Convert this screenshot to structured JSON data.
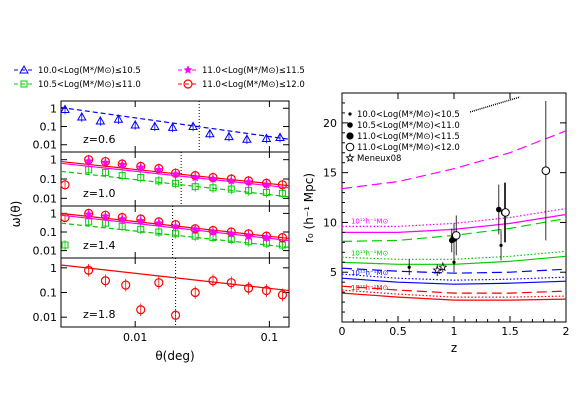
{
  "chart_data": [
    {
      "type": "line",
      "panel": "left",
      "xlabel": "θ(deg)",
      "ylabel": "ω(θ)",
      "xscale": "log",
      "yscale": "log",
      "xlim": [
        0.0028,
        0.14
      ],
      "ylim": [
        0.004,
        2.5
      ],
      "xticks": [
        {
          "v": 0.01,
          "label": "0.01"
        },
        {
          "v": 0.1,
          "label": "0.1"
        }
      ],
      "yticks": [
        {
          "v": 1,
          "label": "1"
        },
        {
          "v": 0.1,
          "label": "0.1"
        },
        {
          "v": 0.01,
          "label": "0.01"
        }
      ],
      "legend": [
        {
          "label": "10.0<Log(M*/M⊙)≤10.5",
          "color": "#0000ff",
          "marker": "triangle"
        },
        {
          "label": "11.0<Log(M*/M⊙)≤11.5",
          "color": "#ff00ff",
          "marker": "star"
        },
        {
          "label": "10.5<Log(M*/M⊙)≤11.0",
          "color": "#00cc00",
          "marker": "square"
        },
        {
          "label": "11.0<Log(M*/M⊙)≤12.0",
          "color": "#ff0000",
          "marker": "circle"
        }
      ],
      "subpanels": [
        {
          "label": "z=0.6",
          "series": [
            {
              "color": "#0000ff",
              "marker": "triangle",
              "x": [
                0.003,
                0.004,
                0.0055,
                0.0075,
                0.01,
                0.014,
                0.019,
                0.027,
                0.036,
                0.05,
                0.068,
                0.095,
                0.12
              ],
              "y": [
                0.85,
                0.33,
                0.2,
                0.25,
                0.12,
                0.1,
                0.09,
                0.1,
                0.04,
                0.028,
                0.02,
                0.022,
                0.025
              ],
              "fit": [
                [
                  0.0028,
                  1.1
                ],
                [
                  0.14,
                  0.02
                ]
              ]
            }
          ],
          "vline": 0.03
        },
        {
          "label": "z=1.0",
          "series": [
            {
              "color": "#00cc00",
              "marker": "square",
              "x": [
                0.0045,
                0.006,
                0.008,
                0.011,
                0.015,
                0.02,
                0.028,
                0.038,
                0.052,
                0.07,
                0.095,
                0.125
              ],
              "y": [
                0.3,
                0.22,
                0.15,
                0.12,
                0.08,
                0.06,
                0.04,
                0.035,
                0.03,
                0.025,
                0.02,
                0.018
              ],
              "fit": [
                [
                  0.0028,
                  0.25
                ],
                [
                  0.14,
                  0.012
                ]
              ]
            },
            {
              "color": "#ff0000",
              "marker": "circle",
              "x": [
                0.003,
                0.0045,
                0.006,
                0.008,
                0.011,
                0.015,
                0.02,
                0.028,
                0.038,
                0.052,
                0.07,
                0.095,
                0.125
              ],
              "y": [
                0.05,
                1.0,
                0.8,
                0.6,
                0.45,
                0.35,
                0.2,
                0.15,
                0.12,
                0.1,
                0.08,
                0.06,
                0.05
              ],
              "fit": [
                [
                  0.0028,
                  0.8
                ],
                [
                  0.14,
                  0.045
                ]
              ]
            },
            {
              "color": "#ff00ff",
              "marker": "star",
              "x": [
                0.0045,
                0.006,
                0.008,
                0.011,
                0.015,
                0.02,
                0.028,
                0.038,
                0.052,
                0.07,
                0.095
              ],
              "y": [
                0.85,
                0.7,
                0.55,
                0.4,
                0.3,
                0.18,
                0.12,
                0.1,
                0.08,
                0.07,
                0.05
              ],
              "fit": [
                [
                  0.0028,
                  0.65
                ],
                [
                  0.14,
                  0.035
                ]
              ]
            }
          ],
          "vline": 0.022
        },
        {
          "label": "z=1.4",
          "series": [
            {
              "color": "#00cc00",
              "marker": "square",
              "x": [
                0.003,
                0.0045,
                0.006,
                0.008,
                0.011,
                0.015,
                0.02,
                0.028,
                0.038,
                0.052,
                0.07,
                0.095,
                0.125
              ],
              "y": [
                0.02,
                0.35,
                0.3,
                0.2,
                0.14,
                0.1,
                0.08,
                0.06,
                0.05,
                0.04,
                0.03,
                0.025,
                0.02
              ],
              "fit": [
                [
                  0.0028,
                  0.3
                ],
                [
                  0.14,
                  0.015
                ]
              ]
            },
            {
              "color": "#ff0000",
              "marker": "circle",
              "x": [
                0.003,
                0.0045,
                0.006,
                0.008,
                0.011,
                0.015,
                0.02,
                0.028,
                0.038,
                0.052,
                0.07,
                0.095,
                0.125
              ],
              "y": [
                0.6,
                1.0,
                0.8,
                0.6,
                0.5,
                0.35,
                0.25,
                0.15,
                0.12,
                0.1,
                0.08,
                0.06,
                0.05
              ],
              "fit": [
                [
                  0.0028,
                  1.0
                ],
                [
                  0.14,
                  0.045
                ]
              ]
            },
            {
              "color": "#ff00ff",
              "marker": "star",
              "x": [
                0.0045,
                0.006,
                0.008,
                0.011,
                0.015,
                0.02,
                0.028,
                0.038,
                0.052,
                0.07,
                0.095
              ],
              "y": [
                0.9,
                0.7,
                0.5,
                0.4,
                0.3,
                0.2,
                0.14,
                0.1,
                0.08,
                0.06,
                0.05
              ],
              "fit": [
                [
                  0.0028,
                  0.8
                ],
                [
                  0.14,
                  0.035
                ]
              ]
            }
          ],
          "vline": 0.019
        },
        {
          "label": "z=1.8",
          "series": [
            {
              "color": "#ff0000",
              "marker": "circle",
              "x": [
                0.0045,
                0.006,
                0.0085,
                0.011,
                0.015,
                0.02,
                0.028,
                0.038,
                0.052,
                0.07,
                0.095,
                0.125
              ],
              "y": [
                0.8,
                0.3,
                0.2,
                0.02,
                0.25,
                0.012,
                0.1,
                0.3,
                0.25,
                0.15,
                0.12,
                0.08
              ],
              "fit": [
                [
                  0.0028,
                  1.3
                ],
                [
                  0.14,
                  0.12
                ]
              ]
            }
          ],
          "vline": 0.02
        }
      ]
    },
    {
      "type": "scatter",
      "panel": "right",
      "xlabel": "z",
      "ylabel": "r₀ (h⁻¹ Mpc)",
      "xlim": [
        0,
        2
      ],
      "ylim": [
        0,
        23
      ],
      "xticks": [
        0,
        0.5,
        1,
        1.5,
        2
      ],
      "yticks": [
        0,
        5,
        10,
        15,
        20
      ],
      "legend": [
        {
          "label": "10.0<Log(M*/M⊙)<10.5",
          "marker": "dot-small"
        },
        {
          "label": "10.5<Log(M*/M⊙)<11.0",
          "marker": "dot-medium"
        },
        {
          "label": "11.0<Log(M*/M⊙)<11.5",
          "marker": "dot-large"
        },
        {
          "label": "11.0<Log(M*/M⊙)<12.0",
          "marker": "circle-open"
        },
        {
          "label": "Meneux08",
          "marker": "star-open"
        }
      ],
      "annotations": [
        {
          "text": "10¹²h⁻¹M⊙",
          "x": 0.08,
          "y": 9.9,
          "color": "#ff00ff"
        },
        {
          "text": "10¹³h⁻¹M⊙",
          "x": 0.08,
          "y": 6.7,
          "color": "#00cc00"
        },
        {
          "text": "10¹¹h⁻¹M⊙",
          "x": 0.08,
          "y": 4.7,
          "color": "#0000ff"
        },
        {
          "text": "10¹⁰h⁻¹M⊙",
          "x": 0.08,
          "y": 3.2,
          "color": "#ff0000"
        }
      ],
      "points": [
        {
          "marker": "dot-small",
          "x": 0.6,
          "y": 5.5,
          "err": 0.8
        },
        {
          "marker": "dot-small",
          "x": 1.0,
          "y": 6.0,
          "err": 1.0
        },
        {
          "marker": "dot-small",
          "x": 1.42,
          "y": 7.7,
          "err": 1.5
        },
        {
          "marker": "dot-medium",
          "x": 0.98,
          "y": 8.2,
          "err": 1.2
        },
        {
          "marker": "dot-medium",
          "x": 1.4,
          "y": 11.3,
          "err": 2.5
        },
        {
          "marker": "dot-large",
          "x": 1.0,
          "y": 8.4,
          "err": 1.5
        },
        {
          "marker": "dot-large",
          "x": 1.45,
          "y": 11.0,
          "err": 3.0
        },
        {
          "marker": "circle-open",
          "x": 1.02,
          "y": 8.7,
          "err": 2.0
        },
        {
          "marker": "circle-open",
          "x": 1.46,
          "y": 11.0,
          "err": 3.0
        },
        {
          "marker": "circle-open",
          "x": 1.82,
          "y": 15.2,
          "err": 7.0
        },
        {
          "marker": "star-open",
          "x": 0.85,
          "y": 5.2,
          "err": 0.6
        },
        {
          "marker": "star-open",
          "x": 0.9,
          "y": 5.5,
          "err": 0.5
        }
      ],
      "curves": [
        {
          "color": "#ff00ff",
          "dash": "long",
          "x": [
            0,
            0.5,
            1,
            1.5,
            2
          ],
          "y": [
            13.4,
            14.1,
            15.4,
            17.0,
            19.2
          ]
        },
        {
          "color": "#ff00ff",
          "dash": "dot",
          "x": [
            0,
            0.5,
            1,
            1.5,
            2
          ],
          "y": [
            9.6,
            9.6,
            9.9,
            10.5,
            11.4
          ]
        },
        {
          "color": "#ff00ff",
          "dash": "solid",
          "x": [
            0,
            0.5,
            1,
            1.5,
            2
          ],
          "y": [
            9.0,
            9.0,
            9.3,
            9.9,
            10.8
          ]
        },
        {
          "color": "#00cc00",
          "dash": "long",
          "x": [
            0,
            0.5,
            1,
            1.5,
            2
          ],
          "y": [
            8.1,
            8.2,
            8.7,
            9.4,
            10.4
          ]
        },
        {
          "color": "#00cc00",
          "dash": "dot",
          "x": [
            0,
            0.5,
            1,
            1.5,
            2
          ],
          "y": [
            6.5,
            6.3,
            6.3,
            6.6,
            7.1
          ]
        },
        {
          "color": "#00cc00",
          "dash": "solid",
          "x": [
            0,
            0.5,
            1,
            1.5,
            2
          ],
          "y": [
            6.0,
            5.8,
            5.8,
            6.1,
            6.6
          ]
        },
        {
          "color": "#0000ff",
          "dash": "long",
          "x": [
            0,
            0.5,
            1,
            1.5,
            2
          ],
          "y": [
            5.4,
            5.1,
            4.9,
            5.0,
            5.3
          ]
        },
        {
          "color": "#0000ff",
          "dash": "dot",
          "x": [
            0,
            0.5,
            1,
            1.5,
            2
          ],
          "y": [
            4.8,
            4.4,
            4.2,
            4.3,
            4.5
          ]
        },
        {
          "color": "#0000ff",
          "dash": "solid",
          "x": [
            0,
            0.5,
            1,
            1.5,
            2
          ],
          "y": [
            4.4,
            4.0,
            3.8,
            3.9,
            4.1
          ]
        },
        {
          "color": "#ff0000",
          "dash": "long",
          "x": [
            0,
            0.5,
            1,
            1.5,
            2
          ],
          "y": [
            3.6,
            3.2,
            2.9,
            2.9,
            3.1
          ]
        },
        {
          "color": "#ff0000",
          "dash": "dot",
          "x": [
            0,
            0.5,
            1,
            1.5,
            2
          ],
          "y": [
            3.2,
            2.8,
            2.5,
            2.5,
            2.6
          ]
        },
        {
          "color": "#ff0000",
          "dash": "solid",
          "x": [
            0,
            0.5,
            1,
            1.5,
            2
          ],
          "y": [
            2.9,
            2.5,
            2.2,
            2.2,
            2.3
          ]
        }
      ]
    }
  ]
}
